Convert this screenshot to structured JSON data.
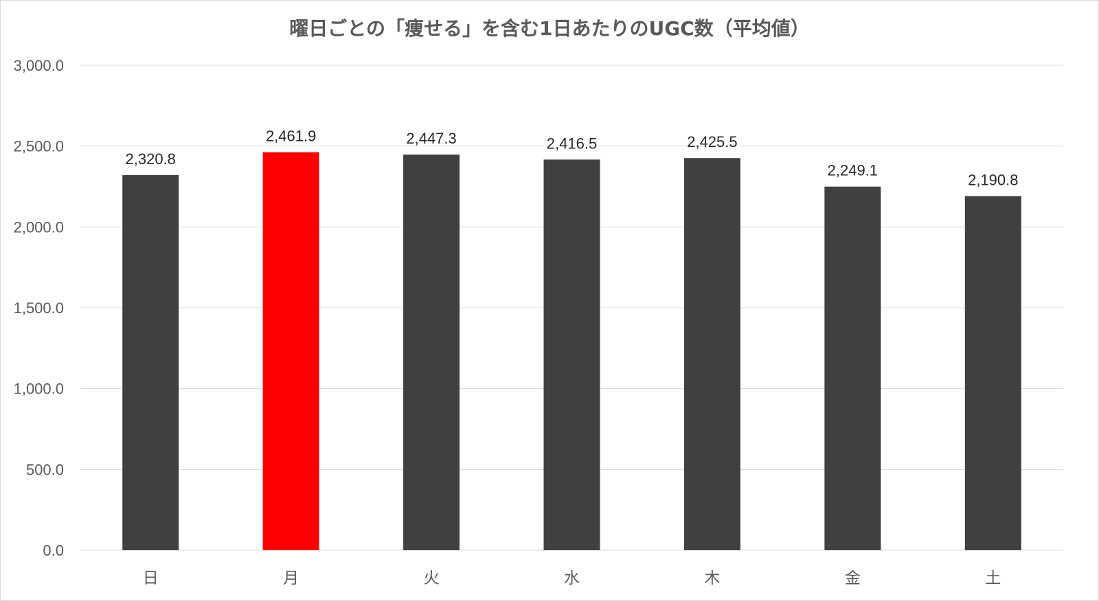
{
  "chart_data": {
    "type": "bar",
    "title": "曜日ごとの「痩せる」を含む1日あたりのUGC数（平均値）",
    "categories": [
      "日",
      "月",
      "火",
      "水",
      "木",
      "金",
      "土"
    ],
    "values": [
      2320.8,
      2461.9,
      2447.3,
      2416.5,
      2425.5,
      2249.1,
      2190.8
    ],
    "data_labels": [
      "2,320.8",
      "2,461.9",
      "2,447.3",
      "2,416.5",
      "2,425.5",
      "2,249.1",
      "2,190.8"
    ],
    "ylim": [
      0,
      3000
    ],
    "yticks": [
      0,
      500,
      1000,
      1500,
      2000,
      2500,
      3000
    ],
    "ytick_labels": [
      "0.0",
      "500.0",
      "1,000.0",
      "1,500.0",
      "2,000.0",
      "2,500.0",
      "3,000.0"
    ],
    "grid": true,
    "legend": "none",
    "colors": {
      "default_bar": "#404040",
      "highlight_bar": "#ff0000",
      "highlight_category": "月",
      "gridline": "#d9d9d9",
      "axis_text": "#595959"
    }
  }
}
